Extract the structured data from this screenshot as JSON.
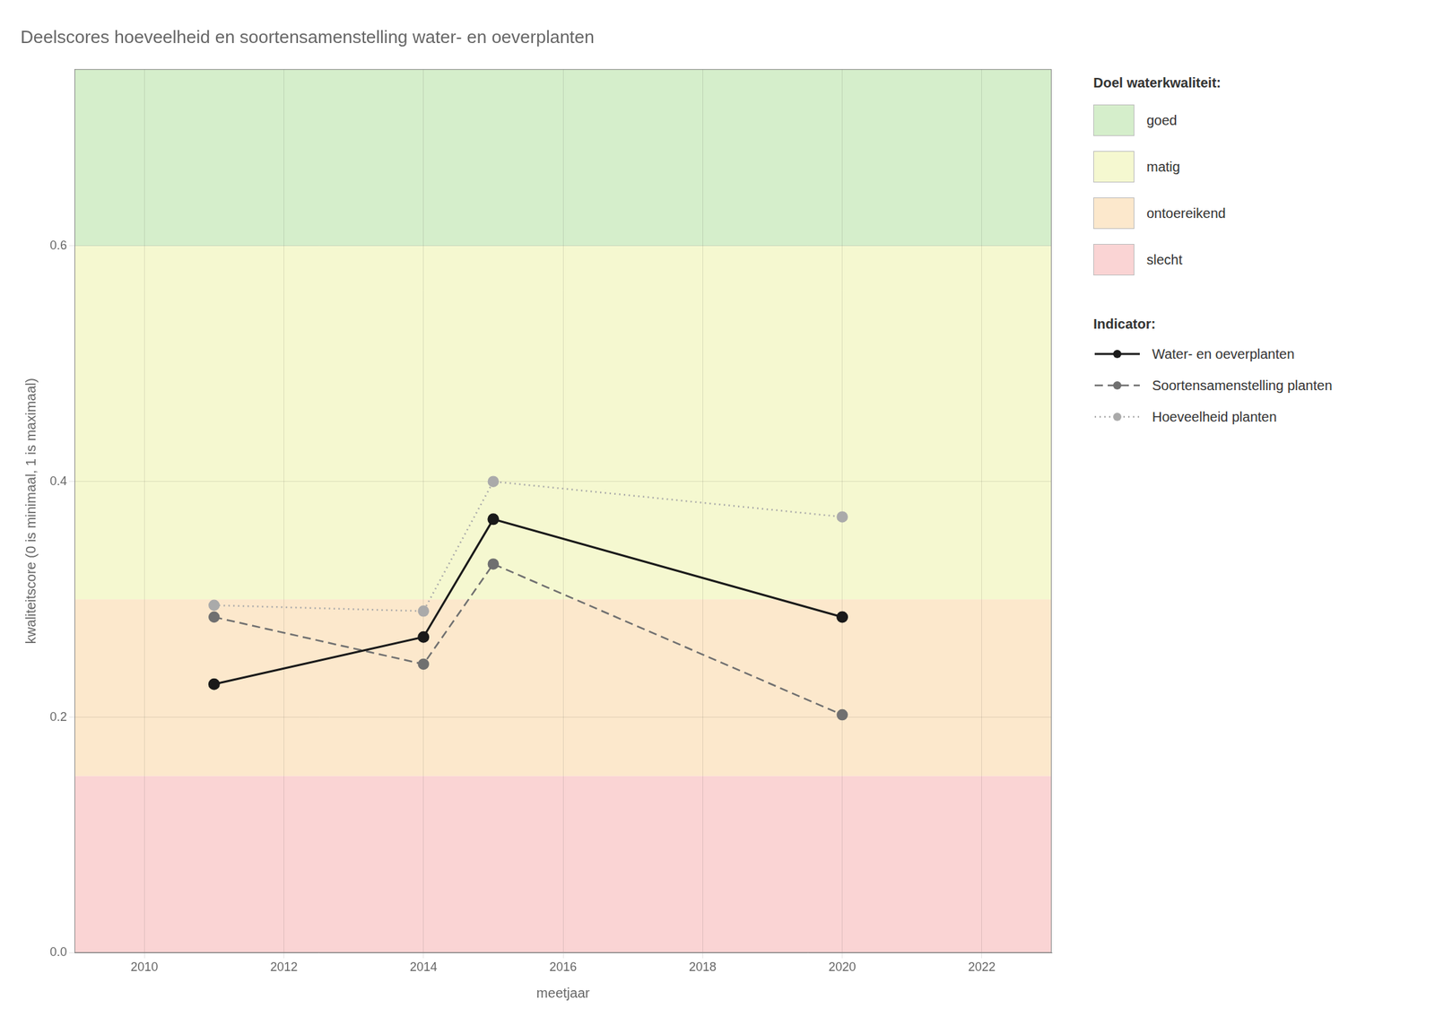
{
  "chart_data": {
    "type": "line",
    "title": "Deelscores hoeveelheid en soortensamenstelling water- en oeverplanten",
    "x_label": "meetjaar",
    "y_label": "kwaliteitscore (0 is minimaal, 1 is maximaal)",
    "x": [
      2011,
      2014,
      2015,
      2020
    ],
    "series": [
      {
        "name": "Water- en oeverplanten",
        "color": "#1a1a1a",
        "line_style": "solid",
        "marker": "circle",
        "values": [
          0.228,
          0.268,
          0.368,
          0.285
        ]
      },
      {
        "name": "Soortensamenstelling planten",
        "color": "#707070",
        "line_style": "dashed",
        "marker": "circle",
        "values": [
          0.285,
          0.245,
          0.33,
          0.202
        ]
      },
      {
        "name": "Hoeveelheid planten",
        "color": "#aaaaaa",
        "line_style": "dotted",
        "marker": "circle",
        "values": [
          0.295,
          0.29,
          0.4,
          0.37
        ]
      }
    ],
    "xlim": [
      2009,
      2023
    ],
    "xticks": [
      2010,
      2012,
      2014,
      2016,
      2018,
      2020,
      2022
    ],
    "ylim": [
      0.0,
      0.75
    ],
    "yticks": [
      {
        "value": 0.0,
        "label": "0.0"
      },
      0.2,
      0.4,
      0.6
    ],
    "grid": true,
    "legend": "right",
    "bands_title": "Doel waterkwaliteit:",
    "bands": [
      {
        "name": "goed",
        "ymin": 0.6,
        "ymax": 0.75,
        "color": "#d5eecb"
      },
      {
        "name": "matig",
        "ymin": 0.3,
        "ymax": 0.6,
        "color": "#f5f8d0"
      },
      {
        "name": "ontoereikend",
        "ymin": 0.15,
        "ymax": 0.3,
        "color": "#fce8cc"
      },
      {
        "name": "slecht",
        "ymin": 0.0,
        "ymax": 0.15,
        "color": "#fad4d4"
      }
    ],
    "series_title": "Indicator:"
  }
}
